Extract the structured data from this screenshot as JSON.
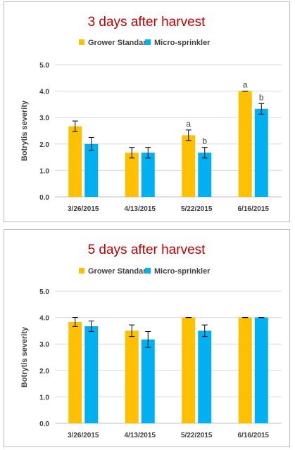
{
  "colors": {
    "series_0": "#FFC000",
    "series_1": "#00B0F0",
    "title": "#C00000",
    "text": "#404040",
    "grid": "#D9D9D9"
  },
  "chart_data": [
    {
      "type": "bar",
      "title": "3 days after harvest",
      "ylabel": "Botrytis severity",
      "xlabel": "",
      "categories": [
        "3/26/2015",
        "4/13/2015",
        "5/22/2015",
        "6/16/2015"
      ],
      "series": [
        {
          "name": "Grower Standard",
          "values": [
            2.67,
            1.67,
            2.33,
            4.0
          ],
          "errors": [
            0.2,
            0.2,
            0.2,
            0.0
          ]
        },
        {
          "name": "Micro-sprinkler",
          "values": [
            2.0,
            1.67,
            1.67,
            3.33
          ],
          "errors": [
            0.25,
            0.2,
            0.2,
            0.2
          ]
        }
      ],
      "annotations": [
        {
          "category": "5/22/2015",
          "series": "Grower Standard",
          "text": "a"
        },
        {
          "category": "5/22/2015",
          "series": "Micro-sprinkler",
          "text": "b"
        },
        {
          "category": "6/16/2015",
          "series": "Grower Standard",
          "text": "a"
        },
        {
          "category": "6/16/2015",
          "series": "Micro-sprinkler",
          "text": "b"
        }
      ],
      "ylim": [
        0,
        5
      ],
      "yticks": [
        "0.0",
        "1.0",
        "2.0",
        "3.0",
        "4.0",
        "5.0"
      ],
      "grid": true,
      "legend": "top"
    },
    {
      "type": "bar",
      "title": "5 days after harvest",
      "ylabel": "Botrytis severity",
      "xlabel": "",
      "categories": [
        "3/26/2015",
        "4/13/2015",
        "5/22/2015",
        "6/16/2015"
      ],
      "series": [
        {
          "name": "Grower Standard",
          "values": [
            3.83,
            3.5,
            4.0,
            4.0
          ],
          "errors": [
            0.17,
            0.22,
            0.0,
            0.0
          ]
        },
        {
          "name": "Micro-sprinkler",
          "values": [
            3.67,
            3.17,
            3.5,
            4.0
          ],
          "errors": [
            0.2,
            0.3,
            0.22,
            0.0
          ]
        }
      ],
      "annotations": [],
      "ylim": [
        0,
        5
      ],
      "yticks": [
        "0.0",
        "1.0",
        "2.0",
        "3.0",
        "4.0",
        "5.0"
      ],
      "grid": true,
      "legend": "top"
    }
  ]
}
